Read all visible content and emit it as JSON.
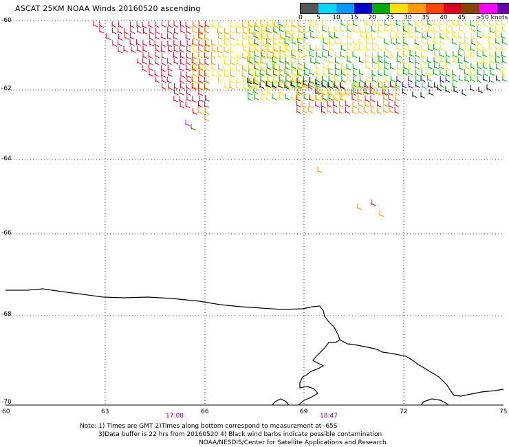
{
  "title": "ASCAT 25KM NOAA Winds 20160520 ascending",
  "legend": {
    "colors": [
      "#555555",
      "#00d8ff",
      "#0099ff",
      "#0000cc",
      "#00aa00",
      "#ffe000",
      "#ff9900",
      "#ff4400",
      "#dd0022",
      "#884400",
      "#ff00ff",
      "#6600aa"
    ],
    "ticks": [
      "0",
      "5",
      "10",
      "15",
      "20",
      "25",
      "30",
      "35",
      "40",
      "45",
      ">50 knots"
    ]
  },
  "map": {
    "lat_labels": [
      "-60",
      "-62",
      "-64",
      "-66",
      "-68",
      "-70"
    ],
    "lon_labels": [
      "60",
      "63",
      "66",
      "69",
      "72",
      "75"
    ],
    "pass_times": [
      "17:08",
      "18:47"
    ]
  },
  "notes": {
    "line1": "Note: 1) Times are GMT 2)Times along bottom correspond to measurement at -65S",
    "line2": "3)Data buffer is 22 hrs from 20160520 4) Black wind barbs indicate possible contamination",
    "line3": "NOAA/NESDIS/Center for Satellite Applications and Research"
  }
}
